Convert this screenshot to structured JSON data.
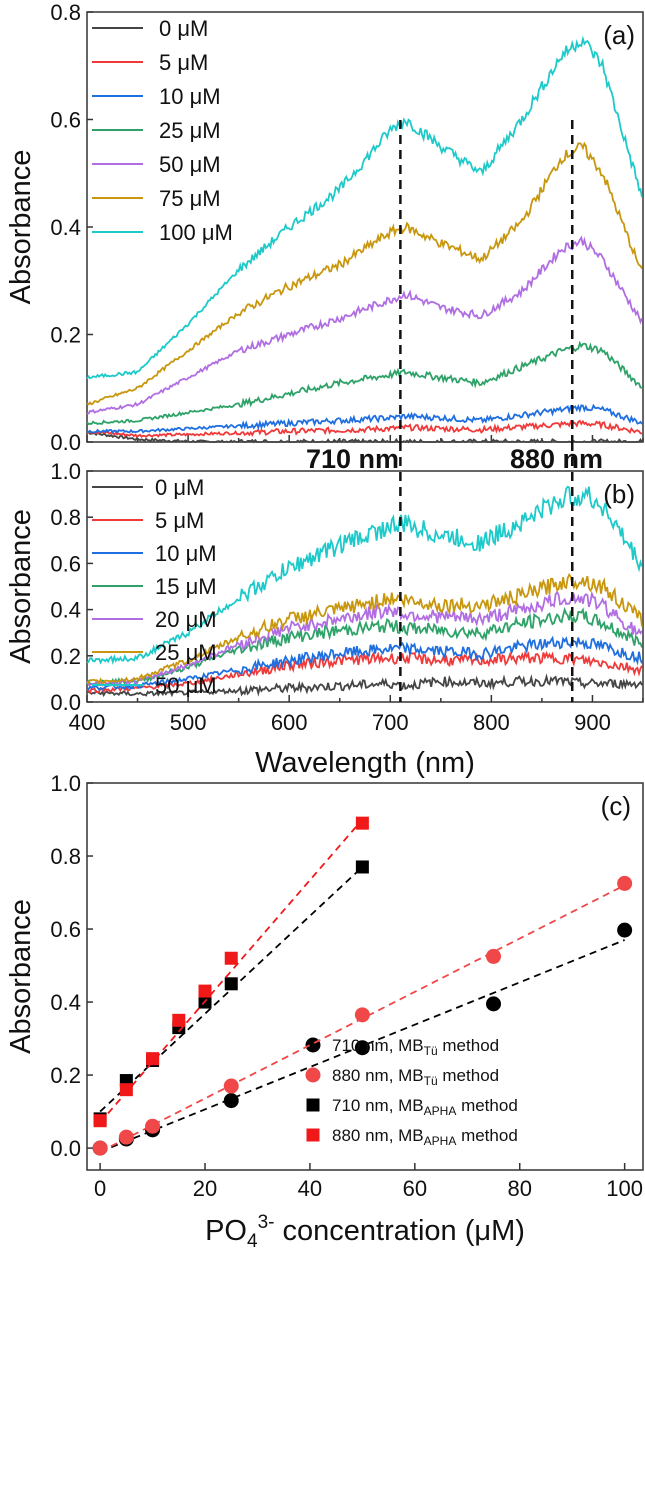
{
  "colors": {
    "0": "#454545",
    "1": "#f03a3a",
    "2": "#1f6fe0",
    "3": "#2ea268",
    "4": "#b06ee2",
    "5": "#c8970e",
    "6": "#1ec9c9",
    "black": "#000000",
    "red": "#f01818",
    "redcircle": "#f04848"
  },
  "annotations": {
    "left_line": "710 nm",
    "right_line": "880 nm",
    "left_wavelength": 710,
    "right_wavelength": 880
  },
  "chart_data": [
    {
      "panel": "(a)",
      "type": "line",
      "ylabel": "Absorbance",
      "xlabel": "",
      "xlim": [
        400,
        950
      ],
      "ylim": [
        0,
        0.8
      ],
      "yticks": [
        "0.0",
        "0.2",
        "0.4",
        "0.6",
        "0.8"
      ],
      "x": [
        400,
        450,
        500,
        550,
        600,
        650,
        700,
        715,
        750,
        790,
        830,
        870,
        890,
        910,
        950
      ],
      "series": [
        {
          "name": "0 μM",
          "values": [
            0.018,
            0.005,
            0.001,
            0,
            0,
            0,
            0,
            0,
            0,
            0,
            0,
            0,
            0,
            0,
            0
          ]
        },
        {
          "name": "5 μM",
          "values": [
            0.02,
            0.012,
            0.014,
            0.017,
            0.02,
            0.022,
            0.025,
            0.027,
            0.025,
            0.023,
            0.028,
            0.033,
            0.035,
            0.032,
            0.018
          ]
        },
        {
          "name": "10 μM",
          "values": [
            0.02,
            0.02,
            0.025,
            0.03,
            0.035,
            0.04,
            0.045,
            0.048,
            0.045,
            0.04,
            0.05,
            0.06,
            0.065,
            0.06,
            0.035
          ]
        },
        {
          "name": "25 μM",
          "values": [
            0.035,
            0.04,
            0.055,
            0.07,
            0.09,
            0.11,
            0.125,
            0.13,
            0.12,
            0.11,
            0.14,
            0.17,
            0.18,
            0.17,
            0.1
          ]
        },
        {
          "name": "50 μM",
          "values": [
            0.055,
            0.07,
            0.12,
            0.17,
            0.2,
            0.23,
            0.265,
            0.275,
            0.25,
            0.235,
            0.28,
            0.36,
            0.375,
            0.34,
            0.22
          ]
        },
        {
          "name": "75 μM",
          "values": [
            0.07,
            0.1,
            0.17,
            0.24,
            0.29,
            0.33,
            0.39,
            0.4,
            0.37,
            0.34,
            0.41,
            0.53,
            0.55,
            0.5,
            0.31
          ]
        },
        {
          "name": "100 μM",
          "values": [
            0.12,
            0.13,
            0.22,
            0.32,
            0.4,
            0.47,
            0.58,
            0.6,
            0.55,
            0.5,
            0.6,
            0.72,
            0.75,
            0.7,
            0.45
          ]
        }
      ]
    },
    {
      "panel": "(b)",
      "type": "line",
      "ylabel": "Absorbance",
      "xlabel": "Wavelength (nm)",
      "xlim": [
        400,
        950
      ],
      "ylim": [
        0,
        1.0
      ],
      "yticks": [
        "0.0",
        "0.2",
        "0.4",
        "0.6",
        "0.8",
        "1.0"
      ],
      "xticks": [
        "400",
        "500",
        "600",
        "700",
        "800",
        "900"
      ],
      "x": [
        400,
        450,
        500,
        550,
        600,
        650,
        700,
        715,
        750,
        790,
        830,
        870,
        890,
        910,
        950
      ],
      "series": [
        {
          "name": "0 μM",
          "values": [
            0.04,
            0.035,
            0.04,
            0.05,
            0.06,
            0.07,
            0.08,
            0.07,
            0.09,
            0.08,
            0.09,
            0.09,
            0.08,
            0.08,
            0.08
          ]
        },
        {
          "name": "5 μM",
          "values": [
            0.05,
            0.06,
            0.08,
            0.12,
            0.16,
            0.18,
            0.19,
            0.19,
            0.18,
            0.18,
            0.19,
            0.19,
            0.18,
            0.17,
            0.14
          ]
        },
        {
          "name": "10 μM",
          "values": [
            0.06,
            0.07,
            0.1,
            0.14,
            0.18,
            0.21,
            0.23,
            0.23,
            0.22,
            0.21,
            0.24,
            0.26,
            0.26,
            0.24,
            0.19
          ]
        },
        {
          "name": "15 μM",
          "values": [
            0.085,
            0.09,
            0.15,
            0.23,
            0.28,
            0.31,
            0.33,
            0.32,
            0.31,
            0.3,
            0.34,
            0.37,
            0.37,
            0.34,
            0.25
          ]
        },
        {
          "name": "20 μM",
          "values": [
            0.08,
            0.09,
            0.16,
            0.25,
            0.32,
            0.36,
            0.4,
            0.38,
            0.37,
            0.36,
            0.4,
            0.45,
            0.45,
            0.42,
            0.28
          ]
        },
        {
          "name": "25 μM",
          "values": [
            0.085,
            0.1,
            0.18,
            0.28,
            0.36,
            0.4,
            0.45,
            0.44,
            0.42,
            0.42,
            0.46,
            0.52,
            0.53,
            0.5,
            0.35
          ]
        },
        {
          "name": "50 μM",
          "values": [
            0.18,
            0.19,
            0.3,
            0.45,
            0.58,
            0.68,
            0.76,
            0.77,
            0.72,
            0.69,
            0.78,
            0.88,
            0.9,
            0.85,
            0.58
          ]
        }
      ]
    },
    {
      "panel": "(c)",
      "type": "scatter",
      "ylabel": "Absorbance",
      "xlabel_main": "PO",
      "xlabel_sub": "4",
      "xlabel_sup": "3-",
      "xlabel_tail": " concentration (μM)",
      "xlim": [
        -2.5,
        103.5
      ],
      "ylim": [
        -0.06,
        1.0
      ],
      "xticks": [
        "0",
        "20",
        "40",
        "60",
        "80",
        "100"
      ],
      "yticks": [
        "0.0",
        "0.2",
        "0.4",
        "0.6",
        "0.8",
        "1.0"
      ],
      "series": [
        {
          "name": "710 nm, MB",
          "sub": "Tü",
          "tail": " method",
          "marker": "circle",
          "color": "black",
          "x": [
            0,
            5,
            10,
            25,
            50,
            75,
            100
          ],
          "y": [
            0,
            0.025,
            0.05,
            0.13,
            0.275,
            0.395,
            0.597
          ],
          "fit": [
            [
              0,
              -0.01
            ],
            [
              100,
              0.57
            ]
          ]
        },
        {
          "name": "880 nm, MB",
          "sub": "Tü",
          "tail": " method",
          "marker": "circle",
          "color": "redcircle",
          "x": [
            0,
            5,
            10,
            25,
            50,
            75,
            100
          ],
          "y": [
            0,
            0.03,
            0.06,
            0.17,
            0.365,
            0.525,
            0.725
          ],
          "fit": [
            [
              0,
              -0.01
            ],
            [
              100,
              0.72
            ]
          ]
        },
        {
          "name": "710 nm, MB",
          "sub": "APHA",
          "tail": " method",
          "marker": "square",
          "color": "black",
          "x": [
            0,
            5,
            10,
            15,
            20,
            25,
            50
          ],
          "y": [
            0.08,
            0.185,
            0.24,
            0.33,
            0.4,
            0.45,
            0.77
          ],
          "fit": [
            [
              0,
              0.1
            ],
            [
              50,
              0.77
            ]
          ]
        },
        {
          "name": "880 nm, MB",
          "sub": "APHA",
          "tail": " method",
          "marker": "square",
          "color": "red",
          "x": [
            0,
            5,
            10,
            15,
            20,
            25,
            50
          ],
          "y": [
            0.075,
            0.16,
            0.245,
            0.35,
            0.43,
            0.52,
            0.89
          ],
          "fit": [
            [
              0,
              0.07
            ],
            [
              50,
              0.9
            ]
          ]
        }
      ]
    }
  ]
}
